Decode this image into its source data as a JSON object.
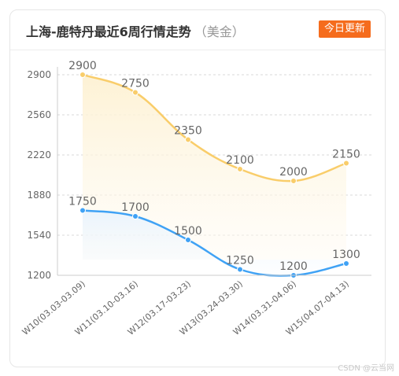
{
  "header": {
    "title": "上海-鹿特丹最近6周行情走势",
    "unit": "（美金）",
    "badge": "今日更新"
  },
  "watermark": "CSDN @云当网",
  "colors": {
    "series_high": "#f9cd6a",
    "series_low": "#3fa2f5",
    "grid": "#d9d9d9",
    "badge_bg": "#f56c1d"
  },
  "chart_data": {
    "type": "line",
    "categories": [
      "W10(03.03-03.09)",
      "W11(03.10-03.16)",
      "W12(03.17-03.23)",
      "W13(03.24-03.30)",
      "W14(03.31-04.06)",
      "W15(04.07-04.13)"
    ],
    "series": [
      {
        "values": [
          2900,
          2750,
          2350,
          2100,
          2000,
          2150
        ]
      },
      {
        "values": [
          1750,
          1700,
          1500,
          1250,
          1200,
          1300
        ]
      }
    ],
    "yticks": [
      1200,
      1540,
      1880,
      2220,
      2560,
      2900
    ],
    "ylim": [
      1200,
      2900
    ],
    "grid": true,
    "title": "",
    "xlabel": "",
    "ylabel": ""
  }
}
